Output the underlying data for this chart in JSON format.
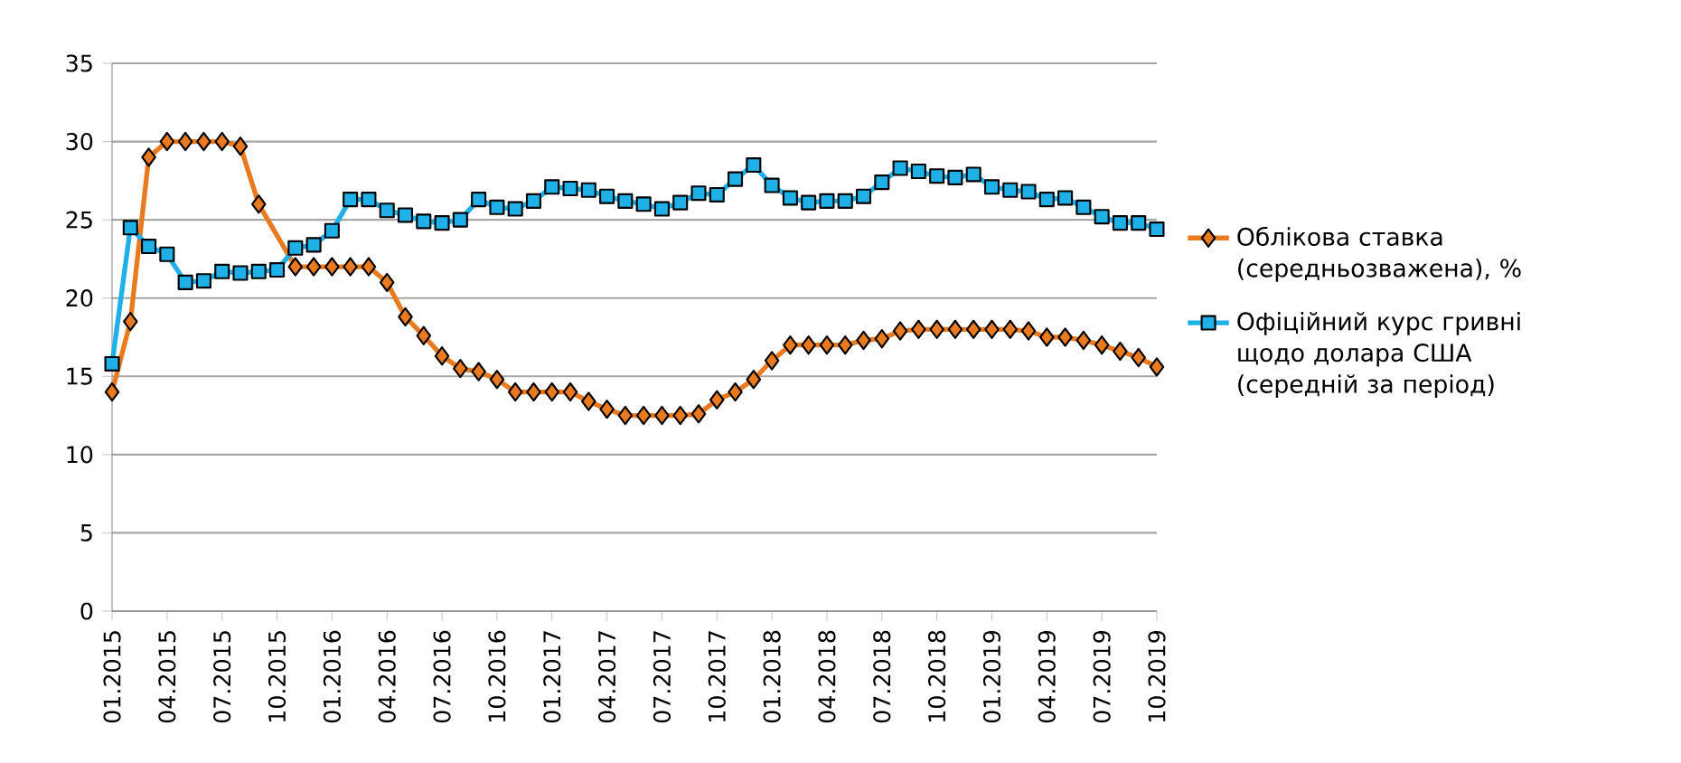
{
  "chart_data": {
    "type": "line",
    "categories": [
      "01.2015",
      null,
      null,
      "04.2015",
      null,
      null,
      "07.2015",
      null,
      null,
      "10.2015",
      null,
      null,
      "01.2016",
      null,
      null,
      "04.2016",
      null,
      null,
      "07.2016",
      null,
      null,
      "10.2016",
      null,
      null,
      "01.2017",
      null,
      null,
      "04.2017",
      null,
      null,
      "07.2017",
      null,
      null,
      "10.2017",
      null,
      null,
      "01.2018",
      null,
      null,
      "04.2018",
      null,
      null,
      "07.2018",
      null,
      null,
      "10.2018",
      null,
      null,
      "01.2019",
      null,
      null,
      "04.2019",
      null,
      null,
      "07.2019",
      null,
      null,
      "10.2019"
    ],
    "series": [
      {
        "name": "Облікова ставка (середньозважена), %",
        "color": "#e97a1f",
        "marker": "diamond",
        "values": [
          14,
          18.5,
          29,
          30,
          30,
          30,
          30,
          29.7,
          26,
          null,
          22,
          22,
          22,
          22,
          22,
          21,
          18.8,
          17.6,
          16.3,
          15.5,
          15.3,
          14.8,
          14,
          14,
          14,
          14,
          13.4,
          12.9,
          12.5,
          12.5,
          12.5,
          12.5,
          12.6,
          13.5,
          14,
          14.8,
          16,
          17,
          17,
          17,
          17,
          17.3,
          17.4,
          17.9,
          18,
          18,
          18,
          18,
          18,
          18,
          17.9,
          17.5,
          17.5,
          17.3,
          17,
          16.6,
          16.2,
          15.6
        ]
      },
      {
        "name": "Офіційний курс гривні щодо долара США (середній за період)",
        "color": "#1fb0e8",
        "marker": "square",
        "values": [
          15.8,
          24.5,
          23.3,
          22.8,
          21,
          21.1,
          21.7,
          21.6,
          21.7,
          21.8,
          23.2,
          23.4,
          24.3,
          26.3,
          26.3,
          25.6,
          25.3,
          24.9,
          24.8,
          25,
          26.3,
          25.8,
          25.7,
          26.2,
          27.1,
          27,
          26.9,
          26.5,
          26.2,
          26,
          25.7,
          26.1,
          26.7,
          26.6,
          27.6,
          28.5,
          27.2,
          26.4,
          26.1,
          26.2,
          26.2,
          26.5,
          27.4,
          28.3,
          28.1,
          27.8,
          27.7,
          27.9,
          27.1,
          26.9,
          26.8,
          26.3,
          26.4,
          25.8,
          25.2,
          24.8,
          24.8,
          24.4
        ]
      }
    ],
    "ylim": [
      0,
      35
    ],
    "yticks": [
      0,
      5,
      10,
      15,
      20,
      25,
      30,
      35
    ],
    "grid": "y",
    "legend": "right"
  }
}
